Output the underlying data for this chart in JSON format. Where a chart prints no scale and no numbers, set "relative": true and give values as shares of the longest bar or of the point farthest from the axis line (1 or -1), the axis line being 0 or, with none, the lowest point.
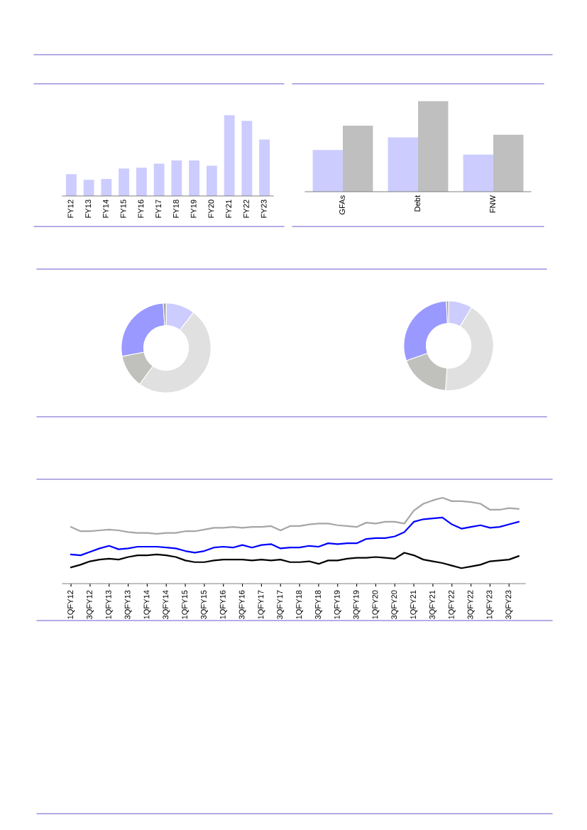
{
  "chart_data": [
    {
      "type": "bar",
      "relative": true,
      "categories": [
        "FY12",
        "FY13",
        "FY14",
        "FY15",
        "FY16",
        "FY17",
        "FY18",
        "FY19",
        "FY20",
        "FY21",
        "FY22",
        "FY23"
      ],
      "series": [
        {
          "color": "#ccccff",
          "values": [
            0.27,
            0.2,
            0.21,
            0.34,
            0.35,
            0.4,
            0.44,
            0.44,
            0.375,
            1,
            0.93,
            0.7
          ]
        }
      ],
      "grid": false
    },
    {
      "type": "bar",
      "relative": true,
      "categories": [
        "GFAs",
        "Debt",
        "FNW"
      ],
      "series": [
        {
          "color": "#ccccff",
          "values": [
            0.46,
            0.6,
            0.41
          ]
        },
        {
          "color": "#bfbfbf",
          "values": [
            0.73,
            1,
            0.63
          ]
        }
      ],
      "grid": false
    },
    {
      "type": "donut",
      "categories": [
        null,
        null,
        null,
        null,
        null
      ],
      "values": [
        10.5,
        49.5,
        12,
        27,
        1
      ],
      "colors": [
        "#ccccff",
        "#e0e0e0",
        "#c0c0bc",
        "#9999ff",
        "#a0a0a0"
      ]
    },
    {
      "type": "donut",
      "categories": [
        null,
        null,
        null,
        null,
        null
      ],
      "values": [
        8.6,
        42.5,
        18.5,
        29.6,
        0.8
      ],
      "colors": [
        "#ccccff",
        "#e0e0e0",
        "#c0c0bc",
        "#9999ff",
        "#a0a0a0"
      ]
    },
    {
      "type": "line",
      "relative": true,
      "grid": false,
      "marker": "none",
      "line_style": "solid",
      "categories": [
        "1QFY12",
        null,
        "3QFY12",
        null,
        "1QFY13",
        null,
        "3QFY13",
        null,
        "1QFY14",
        null,
        "3QFY14",
        null,
        "1QFY15",
        null,
        "3QFY15",
        null,
        "1QFY16",
        null,
        "3QFY16",
        null,
        "1QFY17",
        null,
        "3QFY17",
        null,
        "1QFY18",
        null,
        "3QFY18",
        null,
        "1QFY19",
        null,
        "3QFY19",
        null,
        "1QFY20",
        null,
        "3QFY20",
        null,
        "1QFY21",
        null,
        "3QFY21",
        null,
        "1QFY22",
        null,
        "3QFY22",
        null,
        "1QFY23",
        null,
        "3QFY23",
        null
      ],
      "series": [
        {
          "color": "#0000ff",
          "values": [
            0.34,
            0.33,
            0.37,
            0.41,
            0.44,
            0.4,
            0.41,
            0.43,
            0.43,
            0.43,
            0.42,
            0.41,
            0.38,
            0.36,
            0.38,
            0.42,
            0.43,
            0.42,
            0.45,
            0.42,
            0.45,
            0.46,
            0.41,
            0.42,
            0.42,
            0.44,
            0.43,
            0.47,
            0.46,
            0.47,
            0.47,
            0.52,
            0.53,
            0.53,
            0.55,
            0.6,
            0.72,
            0.75,
            0.76,
            0.77,
            0.69,
            0.64,
            0.66,
            0.68,
            0.65,
            0.66,
            0.69,
            0.72
          ]
        },
        {
          "color": "#000000",
          "values": [
            0.19,
            0.22,
            0.26,
            0.28,
            0.29,
            0.28,
            0.31,
            0.33,
            0.33,
            0.34,
            0.33,
            0.31,
            0.27,
            0.25,
            0.25,
            0.27,
            0.28,
            0.28,
            0.28,
            0.27,
            0.28,
            0.27,
            0.28,
            0.25,
            0.25,
            0.26,
            0.23,
            0.27,
            0.27,
            0.29,
            0.3,
            0.3,
            0.31,
            0.3,
            0.29,
            0.36,
            0.33,
            0.28,
            0.26,
            0.24,
            0.21,
            0.18,
            0.2,
            0.22,
            0.26,
            0.27,
            0.28,
            0.32
          ]
        },
        {
          "color": "#a6a6a6",
          "values": [
            0.66,
            0.61,
            0.61,
            0.62,
            0.63,
            0.62,
            0.6,
            0.59,
            0.59,
            0.58,
            0.59,
            0.59,
            0.61,
            0.61,
            0.63,
            0.65,
            0.65,
            0.66,
            0.65,
            0.66,
            0.66,
            0.67,
            0.62,
            0.67,
            0.67,
            0.69,
            0.7,
            0.7,
            0.68,
            0.67,
            0.66,
            0.71,
            0.7,
            0.72,
            0.72,
            0.7,
            0.85,
            0.93,
            0.97,
            1,
            0.96,
            0.96,
            0.95,
            0.93,
            0.86,
            0.86,
            0.88,
            0.87
          ]
        }
      ]
    }
  ]
}
